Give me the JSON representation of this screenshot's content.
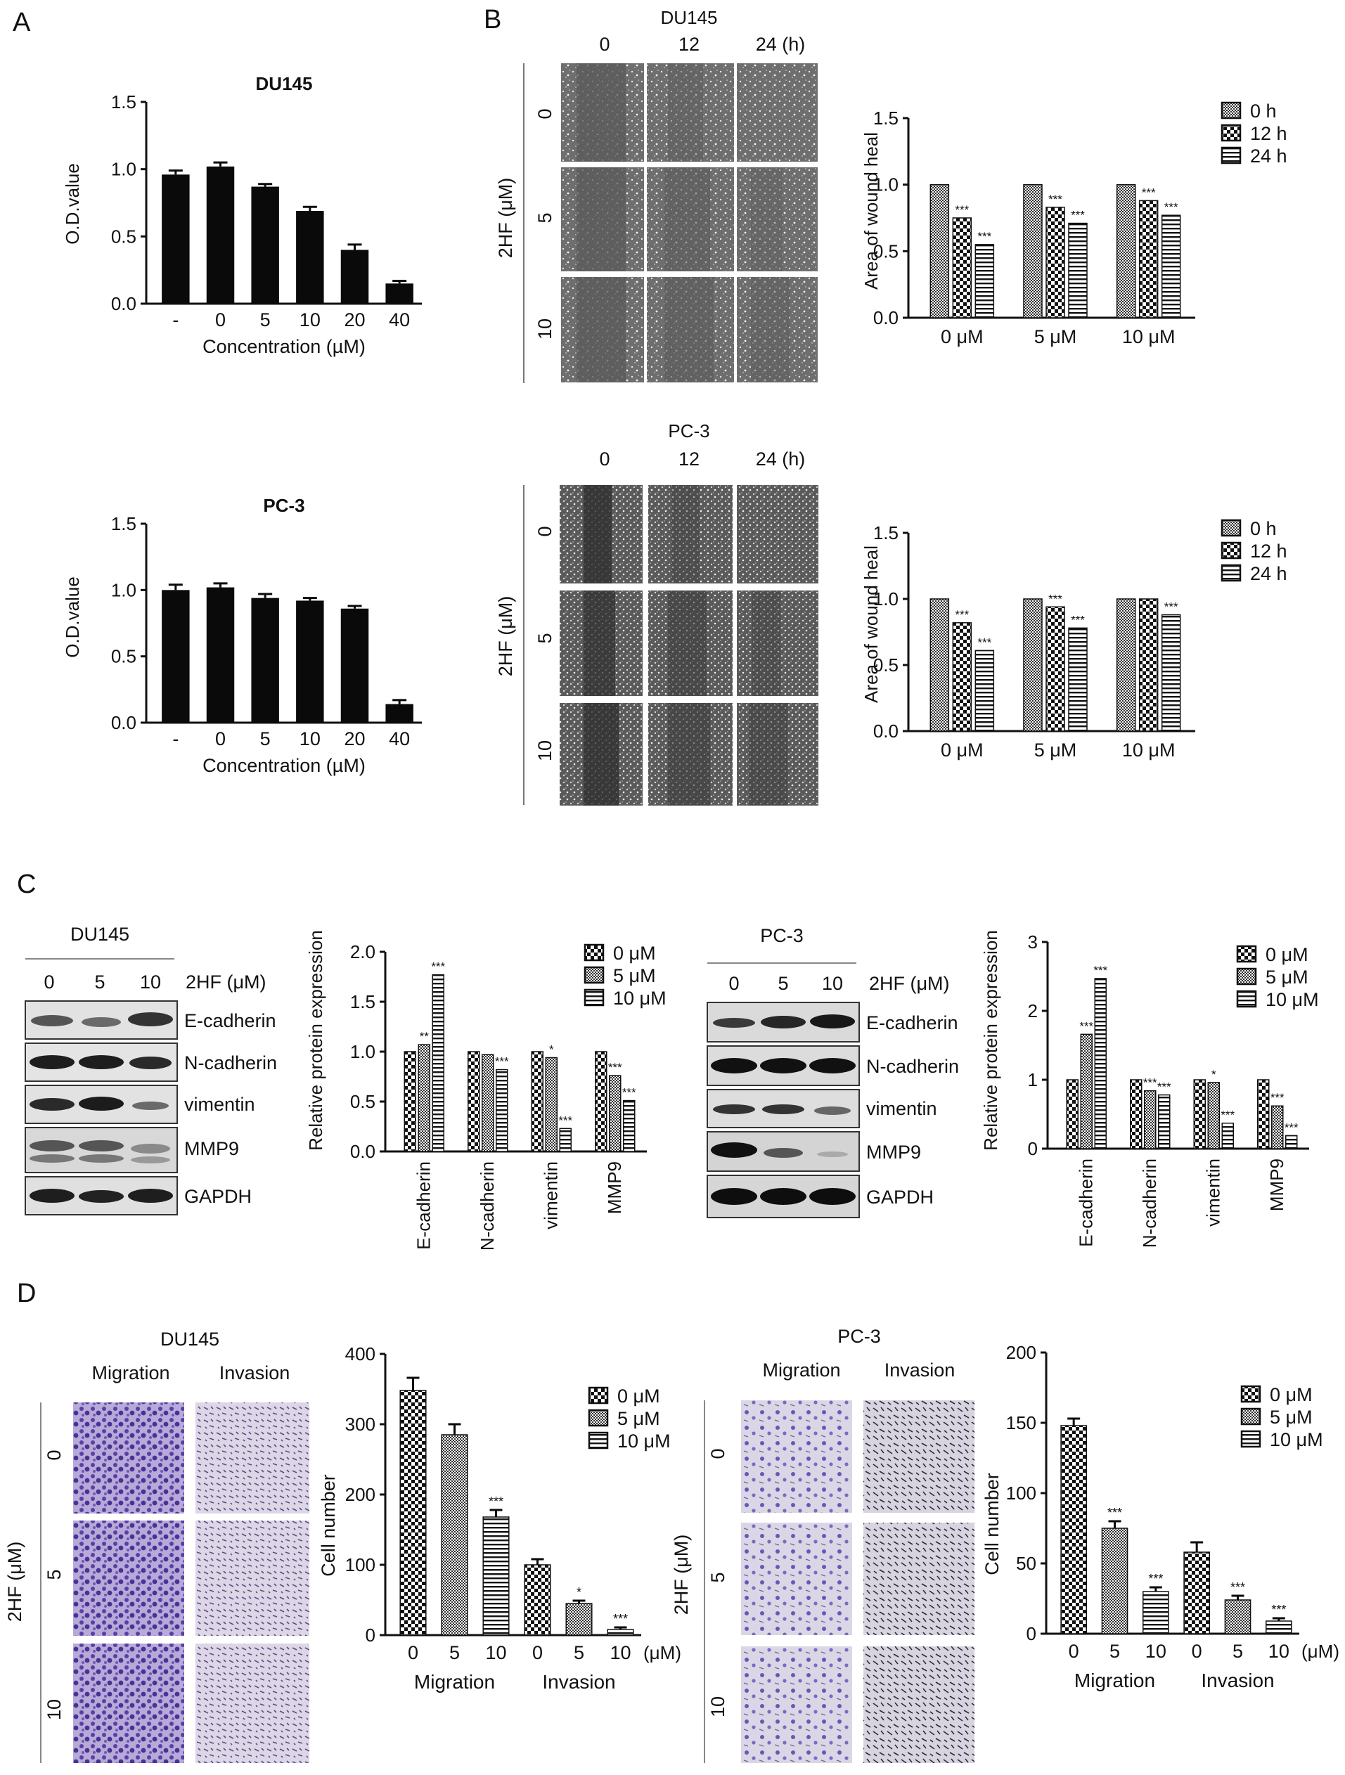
{
  "panels": {
    "A": "A",
    "B": "B",
    "C": "C",
    "D": "D"
  },
  "panelA": {
    "tick_dash": "-",
    "chart_DU145": {
      "title": "DU145",
      "ylabel": "O.D.value",
      "xlabel": "Concentration (µM)",
      "yticks": [
        "0.0",
        "0.5",
        "1.0",
        "1.5"
      ]
    },
    "chart_PC3": {
      "title": "PC-3",
      "ylabel": "O.D.value",
      "xlabel": "Concentration (µM)",
      "yticks": [
        "0.0",
        "0.5",
        "1.0",
        "1.5"
      ]
    }
  },
  "panelB": {
    "DU145": {
      "cell_line": "DU145",
      "time_cols": [
        "0",
        "12",
        "24 (h)"
      ],
      "row_labels": [
        "0",
        "5",
        "10"
      ],
      "axis_label": "2HF (μM)"
    },
    "PC3": {
      "cell_line": "PC-3",
      "time_cols": [
        "0",
        "12",
        "24 (h)"
      ],
      "row_labels": [
        "0",
        "5",
        "10"
      ],
      "axis_label": "2HF (μM)"
    },
    "ylabel": "Area of wound heal",
    "yticks": [
      "0.0",
      "0.5",
      "1.0",
      "1.5"
    ],
    "legend": [
      "0 h",
      "12 h",
      "24 h"
    ],
    "sig": "***"
  },
  "panelC": {
    "DU145": {
      "cell_line": "DU145",
      "lanes": [
        "0",
        "5",
        "10"
      ],
      "treatment": "2HF (μM)",
      "proteins": [
        "E-cadherin",
        "N-cadherin",
        "vimentin",
        "MMP9",
        "GAPDH"
      ]
    },
    "PC3": {
      "cell_line": "PC-3",
      "lanes": [
        "0",
        "5",
        "10"
      ],
      "treatment": "2HF (μM)",
      "proteins": [
        "E-cadherin",
        "N-cadherin",
        "vimentin",
        "MMP9",
        "GAPDH"
      ]
    },
    "ylabel": "Relative protein expression",
    "legend": [
      "0 μM",
      "5 μM",
      "10 μM"
    ],
    "yticks_DU145": [
      "0.0",
      "0.5",
      "1.0",
      "1.5",
      "2.0"
    ],
    "yticks_PC3": [
      "0",
      "1",
      "2",
      "3"
    ]
  },
  "panelD": {
    "DU145": {
      "cell_line": "DU145",
      "columns": [
        "Migration",
        "Invasion"
      ],
      "row_labels": [
        "0",
        "5",
        "10"
      ],
      "axis_label": "2HF (μM)"
    },
    "PC3": {
      "cell_line": "PC-3",
      "columns": [
        "Migration",
        "Invasion"
      ],
      "row_labels": [
        "0",
        "5",
        "10"
      ],
      "axis_label": "2HF (μM)"
    },
    "ylabel": "Cell number",
    "legend": [
      "0 μM",
      "5 μM",
      "10 μM"
    ],
    "xticks": [
      "0",
      "5",
      "10",
      "0",
      "5",
      "10"
    ],
    "unit": "(μM)",
    "groups": [
      "Migration",
      "Invasion"
    ],
    "yticks_DU145": [
      "0",
      "100",
      "200",
      "300",
      "400"
    ],
    "yticks_PC3": [
      "0",
      "50",
      "100",
      "150",
      "200"
    ]
  },
  "colors": {
    "bar": "#0a0a0a",
    "axis": "#111111",
    "legend_border": "#111111"
  },
  "chart_data": [
    {
      "id": "A_DU145",
      "type": "bar",
      "title": "DU145",
      "xlabel": "Concentration (µM)",
      "ylabel": "O.D.value",
      "categories": [
        "-",
        "0",
        "5",
        "10",
        "20",
        "40"
      ],
      "values": [
        0.96,
        1.02,
        0.87,
        0.69,
        0.4,
        0.15
      ],
      "errors": [
        0.03,
        0.03,
        0.02,
        0.03,
        0.04,
        0.02
      ],
      "ylim": [
        0,
        1.5
      ]
    },
    {
      "id": "A_PC3",
      "type": "bar",
      "title": "PC-3",
      "xlabel": "Concentration (µM)",
      "ylabel": "O.D.value",
      "categories": [
        "-",
        "0",
        "5",
        "10",
        "20",
        "40"
      ],
      "values": [
        1.0,
        1.02,
        0.94,
        0.92,
        0.86,
        0.14
      ],
      "errors": [
        0.04,
        0.03,
        0.03,
        0.02,
        0.02,
        0.03
      ],
      "ylim": [
        0,
        1.5
      ]
    },
    {
      "id": "B_DU145",
      "type": "bar",
      "ylabel": "Area of wound heal",
      "categories": [
        "0 μM",
        "5 μM",
        "10 μM"
      ],
      "series": [
        {
          "name": "0 h",
          "values": [
            1.0,
            1.0,
            1.0
          ]
        },
        {
          "name": "12 h",
          "values": [
            0.75,
            0.83,
            0.88
          ]
        },
        {
          "name": "24 h",
          "values": [
            0.55,
            0.71,
            0.77
          ]
        }
      ],
      "significance": [
        [
          null,
          null,
          null
        ],
        [
          "***",
          "***",
          "***"
        ],
        [
          "***",
          "***",
          "***"
        ]
      ],
      "ylim": [
        0,
        1.5
      ]
    },
    {
      "id": "B_PC3",
      "type": "bar",
      "ylabel": "Area of wound heal",
      "categories": [
        "0 μM",
        "5 μM",
        "10 μM"
      ],
      "series": [
        {
          "name": "0 h",
          "values": [
            1.0,
            1.0,
            1.0
          ]
        },
        {
          "name": "12 h",
          "values": [
            0.82,
            0.94,
            1.0
          ]
        },
        {
          "name": "24 h",
          "values": [
            0.61,
            0.78,
            0.88
          ]
        }
      ],
      "significance": [
        [
          null,
          null,
          null
        ],
        [
          "***",
          "***",
          null
        ],
        [
          "***",
          "***",
          "***"
        ]
      ],
      "ylim": [
        0,
        1.5
      ]
    },
    {
      "id": "C_DU145",
      "type": "bar",
      "ylabel": "Relative protein expression",
      "categories": [
        "E-cadherin",
        "N-cadherin",
        "vimentin",
        "MMP9"
      ],
      "series": [
        {
          "name": "0 μM",
          "values": [
            1.0,
            1.0,
            1.0,
            1.0
          ]
        },
        {
          "name": "5 μM",
          "values": [
            1.07,
            0.97,
            0.94,
            0.76
          ]
        },
        {
          "name": "10 μM",
          "values": [
            1.77,
            0.82,
            0.23,
            0.51
          ]
        }
      ],
      "significance": [
        [
          null,
          null,
          null,
          null
        ],
        [
          "**",
          null,
          "*",
          "***"
        ],
        [
          "***",
          "***",
          "***",
          "***"
        ]
      ],
      "ylim": [
        0,
        2.0
      ]
    },
    {
      "id": "C_PC3",
      "type": "bar",
      "ylabel": "Relative protein expression",
      "categories": [
        "E-cadherin",
        "N-cadherin",
        "vimentin",
        "MMP9"
      ],
      "series": [
        {
          "name": "0 μM",
          "values": [
            1.0,
            1.0,
            1.0,
            1.0
          ]
        },
        {
          "name": "5 μM",
          "values": [
            1.66,
            0.84,
            0.96,
            0.62
          ]
        },
        {
          "name": "10 μM",
          "values": [
            2.47,
            0.78,
            0.37,
            0.19
          ]
        }
      ],
      "significance": [
        [
          null,
          null,
          null,
          null
        ],
        [
          "***",
          "***",
          "*",
          "***"
        ],
        [
          "***",
          "***",
          "***",
          "***"
        ]
      ],
      "ylim": [
        0,
        3
      ]
    },
    {
      "id": "D_DU145",
      "type": "bar",
      "ylabel": "Cell number",
      "groups": [
        "Migration",
        "Invasion"
      ],
      "x": [
        "0",
        "5",
        "10",
        "0",
        "5",
        "10"
      ],
      "values": [
        348,
        285,
        168,
        100,
        45,
        8
      ],
      "errors": [
        18,
        15,
        10,
        8,
        4,
        3
      ],
      "significance": [
        null,
        null,
        "***",
        null,
        "*",
        "***"
      ],
      "ylim": [
        0,
        400
      ]
    },
    {
      "id": "D_PC3",
      "type": "bar",
      "ylabel": "Cell number",
      "groups": [
        "Migration",
        "Invasion"
      ],
      "x": [
        "0",
        "5",
        "10",
        "0",
        "5",
        "10"
      ],
      "values": [
        148,
        75,
        30,
        58,
        24,
        9
      ],
      "errors": [
        5,
        5,
        3,
        7,
        3,
        2
      ],
      "significance": [
        null,
        "***",
        "***",
        null,
        "***",
        "***"
      ],
      "ylim": [
        0,
        200
      ]
    }
  ]
}
